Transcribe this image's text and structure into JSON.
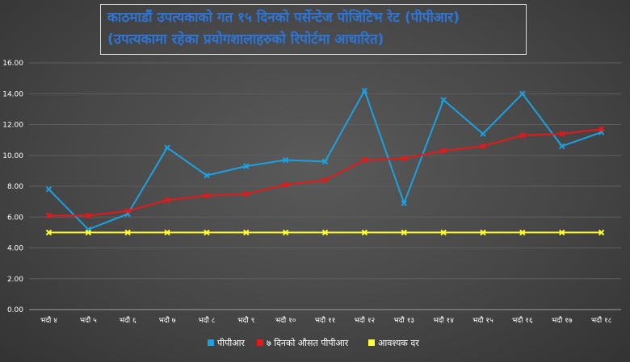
{
  "chart_data": {
    "type": "line",
    "title": "काठमाडौं उपत्यकाको गत १५ दिनको पर्सेन्टेज पोजिटिभ रेट (पीपीआर)",
    "subtitle": "(उपत्यकामा रहेका प्रयोगशालाहरुको रिपोर्टमा आधारित)",
    "categories": [
      "भदौ ४",
      "भदौ ५",
      "भदौ ६",
      "भदौ ७",
      "भदौ ८",
      "भदौ ९",
      "भदौ १०",
      "भदौ ११",
      "भदौ १२",
      "भदौ १३",
      "भदौ १४",
      "भदौ १५",
      "भदौ १६",
      "भदौ १७",
      "भदौ १८"
    ],
    "yticks": [
      "0.00",
      "2.00",
      "4.00",
      "6.00",
      "8.00",
      "10.00",
      "12.00",
      "14.00",
      "16.00"
    ],
    "ylim": [
      0,
      16
    ],
    "grid": true,
    "legend_position": "bottom",
    "series": [
      {
        "name": "पीपीआर",
        "color": "#1ba1e2",
        "values": [
          7.8,
          5.2,
          6.2,
          10.5,
          8.7,
          9.3,
          9.7,
          9.6,
          14.2,
          6.9,
          13.6,
          11.4,
          14.0,
          10.6,
          11.5
        ]
      },
      {
        "name": "७ दिनको औसत पीपीआर",
        "color": "#e81818",
        "values": [
          6.1,
          6.1,
          6.4,
          7.1,
          7.4,
          7.5,
          8.1,
          8.4,
          9.7,
          9.8,
          10.3,
          10.6,
          11.3,
          11.4,
          11.7
        ]
      },
      {
        "name": "आवश्यक दर",
        "color": "#ffff33",
        "values": [
          5,
          5,
          5,
          5,
          5,
          5,
          5,
          5,
          5,
          5,
          5,
          5,
          5,
          5,
          5
        ]
      }
    ]
  }
}
